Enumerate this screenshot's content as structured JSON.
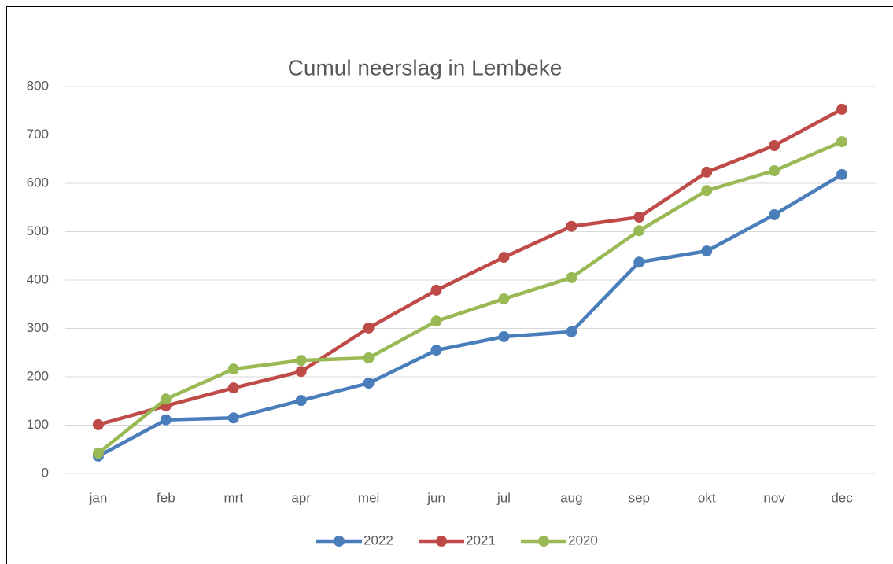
{
  "chart_data": {
    "type": "line",
    "title": "Cumul neerslag in Lembeke",
    "categories": [
      "jan",
      "feb",
      "mrt",
      "apr",
      "mei",
      "jun",
      "jul",
      "aug",
      "sep",
      "okt",
      "nov",
      "dec"
    ],
    "series": [
      {
        "name": "2022",
        "color": "#4a7ebb",
        "values": [
          36,
          111,
          115,
          151,
          187,
          255,
          283,
          293,
          437,
          460,
          535,
          618
        ]
      },
      {
        "name": "2021",
        "color": "#be4b48",
        "values": [
          101,
          140,
          177,
          211,
          301,
          379,
          447,
          511,
          530,
          623,
          678,
          753
        ]
      },
      {
        "name": "2020",
        "color": "#98b954",
        "values": [
          42,
          154,
          216,
          234,
          239,
          315,
          361,
          405,
          502,
          585,
          626,
          686
        ]
      }
    ],
    "ylim": [
      0,
      800
    ],
    "yticks": [
      0,
      100,
      200,
      300,
      400,
      500,
      600,
      700,
      800
    ],
    "grid": true,
    "legend": "bottom"
  }
}
